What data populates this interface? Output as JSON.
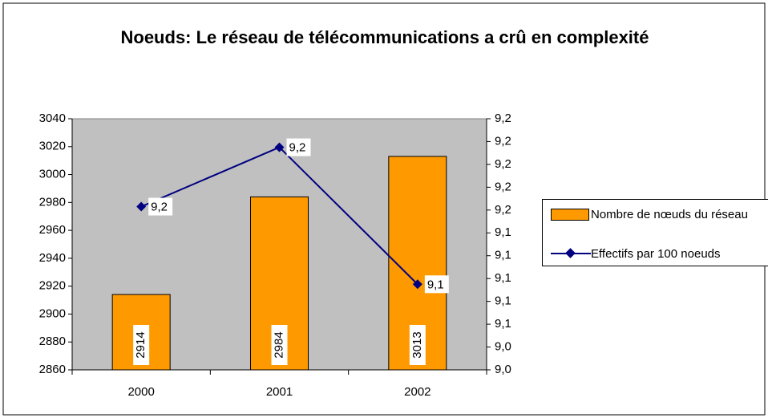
{
  "chart_data": {
    "type": "bar",
    "title": "Noeuds: Le réseau de télécommunications a crû en complexité",
    "categories": [
      "2000",
      "2001",
      "2002"
    ],
    "series": [
      {
        "name": "Nombre de nœuds du réseau",
        "type": "bar",
        "color": "#ff9900",
        "values": [
          2914,
          2984,
          3013
        ]
      },
      {
        "name": "Effectifs par 100 noeuds",
        "type": "line",
        "axis": "y2",
        "color": "#000080",
        "values": [
          9.163,
          9.215,
          9.095
        ],
        "value_labels": [
          "9,2",
          "9,2",
          "9,1"
        ]
      }
    ],
    "ylim": [
      2860,
      3040
    ],
    "yticks": [
      2860,
      2880,
      2900,
      2920,
      2940,
      2960,
      2980,
      3000,
      3020,
      3040
    ],
    "y2lim": [
      9.02,
      9.24
    ],
    "y2ticks": [
      {
        "value": 9.02,
        "label": "9,0"
      },
      {
        "value": 9.04,
        "label": "9,0"
      },
      {
        "value": 9.06,
        "label": "9,1"
      },
      {
        "value": 9.08,
        "label": "9,1"
      },
      {
        "value": 9.1,
        "label": "9,1"
      },
      {
        "value": 9.12,
        "label": "9,1"
      },
      {
        "value": 9.14,
        "label": "9,1"
      },
      {
        "value": 9.16,
        "label": "9,2"
      },
      {
        "value": 9.18,
        "label": "9,2"
      },
      {
        "value": 9.2,
        "label": "9,2"
      },
      {
        "value": 9.22,
        "label": "9,2"
      },
      {
        "value": 9.24,
        "label": "9,2"
      }
    ],
    "legend": "right"
  }
}
